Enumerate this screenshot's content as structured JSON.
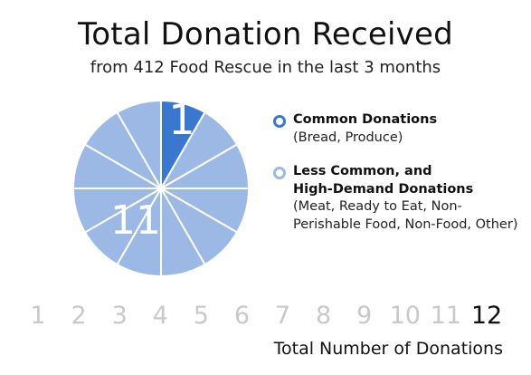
{
  "chart_data": {
    "type": "pie",
    "title": "Total Donation Received",
    "subtitle": "from 412 Food Rescue in the last 3 months",
    "slices": [
      {
        "label": "Common Donations",
        "value": 1,
        "color": "#3a78d0"
      },
      {
        "label": "Less Common, and High-Demand Donations",
        "value": 11,
        "color": "#9bb9e4"
      }
    ],
    "slice_labels": [
      "1",
      "11"
    ],
    "legend": [
      {
        "name": "Common Donations",
        "description": "(Bread, Produce)",
        "color": "#3a78d0"
      },
      {
        "name": "Less Common, and\nHigh-Demand Donations",
        "description": "(Meat, Ready to Eat, Non-Perishable Food, Non-Food, Other)",
        "color": "#9bb9e4"
      }
    ],
    "legend_position": "right",
    "scale": {
      "ticks": [
        "1",
        "2",
        "3",
        "4",
        "5",
        "6",
        "7",
        "8",
        "9",
        "10",
        "11",
        "12"
      ],
      "highlighted": "12",
      "label": "Total Number of Donations"
    }
  }
}
